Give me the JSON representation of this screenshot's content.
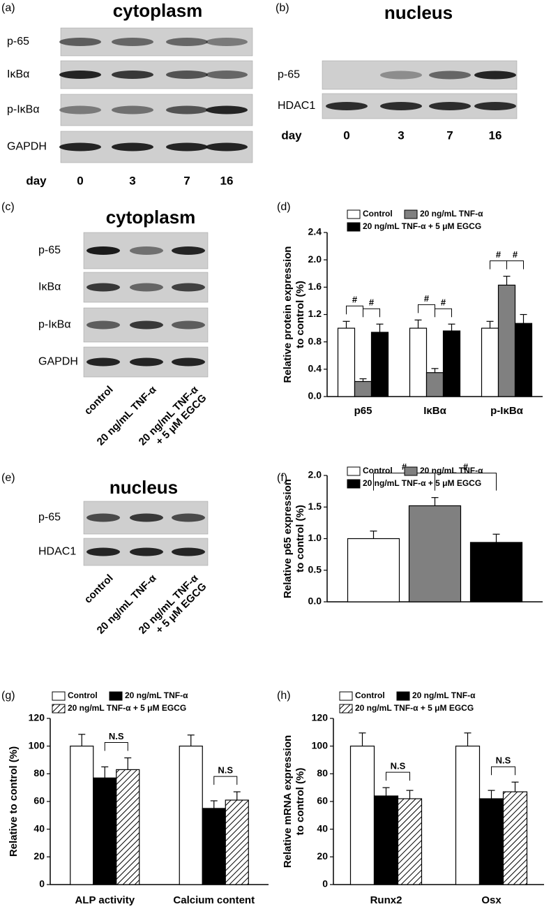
{
  "blots": [
    {
      "label": "(a)",
      "title": "cytoplasm",
      "x_label": "day",
      "rows": [
        {
          "name": "p-65",
          "bands": [
            0.6,
            0.55,
            0.55,
            0.45
          ]
        },
        {
          "name": "IκBα",
          "bands": [
            0.9,
            0.8,
            0.65,
            0.55
          ]
        },
        {
          "name": "p-IκBα",
          "bands": [
            0.45,
            0.5,
            0.65,
            0.9
          ]
        },
        {
          "name": "GAPDH",
          "bands": [
            0.9,
            0.9,
            0.9,
            0.9
          ]
        }
      ],
      "lanes": [
        [
          "0"
        ],
        [
          "3"
        ],
        [
          "7"
        ],
        [
          "16"
        ]
      ]
    },
    {
      "label": "(b)",
      "title": "nucleus",
      "x_label": "day",
      "rows": [
        {
          "name": "p-65",
          "bands": [
            0,
            0.35,
            0.55,
            0.9
          ]
        },
        {
          "name": "HDAC1",
          "bands": [
            0.85,
            0.85,
            0.85,
            0.85
          ]
        }
      ],
      "lanes": [
        [
          "0"
        ],
        [
          "3"
        ],
        [
          "7"
        ],
        [
          "16"
        ]
      ]
    },
    {
      "label": "(c)",
      "title": "cytoplasm",
      "rows": [
        {
          "name": "p-65",
          "bands": [
            0.95,
            0.5,
            0.9
          ]
        },
        {
          "name": "IκBα",
          "bands": [
            0.8,
            0.55,
            0.75
          ]
        },
        {
          "name": "p-IκBα",
          "bands": [
            0.6,
            0.8,
            0.6
          ]
        },
        {
          "name": "GAPDH",
          "bands": [
            0.9,
            0.9,
            0.9
          ]
        }
      ],
      "lanes": [
        [
          "control"
        ],
        [
          "20 ng/mL TNF-α"
        ],
        [
          "20 ng/mL TNF-α",
          "+ 5 μM EGCG"
        ]
      ]
    },
    {
      "label": "(e)",
      "title": "nucleus",
      "rows": [
        {
          "name": "p-65",
          "bands": [
            0.7,
            0.8,
            0.7
          ]
        },
        {
          "name": "HDAC1",
          "bands": [
            0.9,
            0.9,
            0.9
          ]
        }
      ],
      "lanes": [
        [
          "control"
        ],
        [
          "20 ng/mL TNF-α"
        ],
        [
          "20 ng/mL TNF-α",
          "+ 5 μM EGCG"
        ]
      ]
    }
  ],
  "chart_data": [
    {
      "type": "bar",
      "label": "(d)",
      "ylabel": [
        "Relative protein expression",
        "to control (%)"
      ],
      "categories": [
        "p65",
        "IκBα",
        "p-IκBα"
      ],
      "series": [
        {
          "name": "Control",
          "color": "#ffffff",
          "values": [
            1.0,
            1.0,
            1.0
          ],
          "errors": [
            0.1,
            0.12,
            0.1
          ]
        },
        {
          "name": "20 ng/mL TNF-α",
          "color": "#808080",
          "values": [
            0.22,
            0.35,
            1.63
          ],
          "errors": [
            0.04,
            0.06,
            0.13
          ]
        },
        {
          "name": "20 ng/mL TNF-α + 5 μM EGCG",
          "color": "#000000",
          "values": [
            0.94,
            0.96,
            1.07
          ],
          "errors": [
            0.12,
            0.1,
            0.13
          ]
        }
      ],
      "significance": [
        [
          "#",
          "#"
        ],
        [
          "#",
          "#"
        ],
        [
          "#",
          "#"
        ]
      ],
      "ylim": [
        0,
        2.4
      ],
      "yticks": [
        {
          "value": 0,
          "label": "0.0"
        },
        0.4,
        0.8,
        1.2,
        1.6,
        {
          "value": 2,
          "label": "2.0"
        },
        2.4
      ]
    },
    {
      "type": "bar",
      "label": "(f)",
      "ylabel": [
        "Relative p65 expression",
        "to control (%)"
      ],
      "categories": [
        null
      ],
      "series": [
        {
          "name": "Control",
          "color": "#ffffff",
          "values": [
            1.0
          ],
          "errors": [
            0.12
          ]
        },
        {
          "name": "20 ng/mL TNF-α",
          "color": "#808080",
          "values": [
            1.52
          ],
          "errors": [
            0.13
          ]
        },
        {
          "name": "20 ng/mL TNF-α + 5 μM EGCG",
          "color": "#000000",
          "values": [
            0.94
          ],
          "errors": [
            0.13
          ]
        }
      ],
      "significance": [
        [
          "#",
          "#"
        ]
      ],
      "ylim": [
        0,
        2
      ],
      "yticks": [
        {
          "value": 0,
          "label": "0.0"
        },
        0.5,
        {
          "value": 1,
          "label": "1.0"
        },
        1.5,
        {
          "value": 2,
          "label": "2.0"
        }
      ]
    },
    {
      "type": "bar",
      "label": "(g)",
      "ylabel": [
        "Relative to control (%)"
      ],
      "categories": [
        "ALP activity",
        "Calcium content"
      ],
      "series": [
        {
          "name": "Control",
          "color": "#ffffff",
          "values": [
            100,
            100
          ],
          "errors": [
            8.5,
            8
          ]
        },
        {
          "name": "20 ng/mL TNF-α",
          "color": "#000000",
          "values": [
            77,
            55
          ],
          "errors": [
            8,
            5.5
          ]
        },
        {
          "name": "20 ng/mL TNF-α + 5 μM EGCG",
          "color": "#ffffff",
          "hatch": true,
          "values": [
            83,
            61
          ],
          "errors": [
            8.5,
            6
          ]
        }
      ],
      "significance": [
        [
          null,
          "N.S"
        ],
        [
          null,
          "N.S"
        ]
      ],
      "ylim": [
        0,
        120
      ],
      "yticks": [
        0,
        20,
        40,
        60,
        80,
        100,
        120
      ]
    },
    {
      "type": "bar",
      "label": "(h)",
      "ylabel": [
        "Relative mRNA expression",
        "to control (%)"
      ],
      "categories": [
        "Runx2",
        "Osx"
      ],
      "series": [
        {
          "name": "Control",
          "color": "#ffffff",
          "values": [
            100,
            100
          ],
          "errors": [
            9.5,
            9.5
          ]
        },
        {
          "name": "20 ng/mL TNF-α",
          "color": "#000000",
          "values": [
            64,
            62
          ],
          "errors": [
            6,
            6
          ]
        },
        {
          "name": "20 ng/mL TNF-α + 5 μM EGCG",
          "color": "#ffffff",
          "hatch": true,
          "values": [
            62,
            67
          ],
          "errors": [
            6,
            7
          ]
        }
      ],
      "significance": [
        [
          null,
          "N.S"
        ],
        [
          null,
          "N.S"
        ]
      ],
      "ylim": [
        0,
        120
      ],
      "yticks": [
        0,
        20,
        40,
        60,
        80,
        100,
        120
      ]
    }
  ]
}
